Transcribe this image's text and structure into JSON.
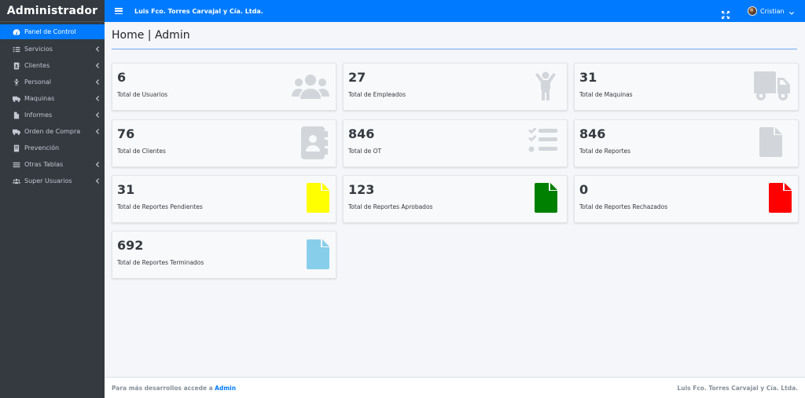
{
  "sidebar": {
    "brand": "Administrador",
    "items": [
      {
        "label": "Panel de Control",
        "icon": "tachometer-icon"
      },
      {
        "label": "Servicios",
        "icon": "list-icon"
      },
      {
        "label": "Clientes",
        "icon": "address-book-icon"
      },
      {
        "label": "Personal",
        "icon": "person-icon"
      },
      {
        "label": "Maquinas",
        "icon": "truck-icon"
      },
      {
        "label": "Informes",
        "icon": "file-icon"
      },
      {
        "label": "Orden de Compra",
        "icon": "truck-icon"
      },
      {
        "label": "Prevención",
        "icon": "book-icon"
      },
      {
        "label": "Otras Tablas",
        "icon": "bars-icon"
      },
      {
        "label": "Super Usuarios",
        "icon": "users-icon"
      }
    ]
  },
  "topbar": {
    "company": "Luis Fco. Torres Carvajal y Cía. Ltda.",
    "user": "Cristian"
  },
  "page": {
    "title": "Home | Admin"
  },
  "cards": [
    {
      "value": "6",
      "label": "Total de Usuarios",
      "icon": "users-icon",
      "color": "#d2d6da"
    },
    {
      "value": "27",
      "label": "Total de Empleados",
      "icon": "child-icon",
      "color": "#d2d6da"
    },
    {
      "value": "31",
      "label": "Total de Maquinas",
      "icon": "truck-icon",
      "color": "#d2d6da"
    },
    {
      "value": "76",
      "label": "Total de Clientes",
      "icon": "address-book-icon",
      "color": "#d2d6da"
    },
    {
      "value": "846",
      "label": "Total de OT",
      "icon": "tasks-icon",
      "color": "#d2d6da"
    },
    {
      "value": "846",
      "label": "Total de Reportes",
      "icon": "file-icon",
      "color": "#d2d6da"
    },
    {
      "value": "31",
      "label": "Total de Reportes Pendientes",
      "icon": "file-icon",
      "color": "#ffff00"
    },
    {
      "value": "123",
      "label": "Total de Reportes Aprobados",
      "icon": "file-icon",
      "color": "#008000"
    },
    {
      "value": "0",
      "label": "Total de Reportes Rechazados",
      "icon": "file-icon",
      "color": "#ff0000"
    },
    {
      "value": "692",
      "label": "Total de Reportes Terminados",
      "icon": "file-icon",
      "color": "#87ceeb"
    }
  ],
  "footer": {
    "left_text": "Para más desarrollos accede a",
    "left_link": "Admin",
    "right_text": "Luis Fco. Torres Carvajal y Cía. Ltda."
  },
  "colors": {
    "primary": "#007bff",
    "sidebar": "#343a40",
    "background": "#f4f6f9"
  }
}
